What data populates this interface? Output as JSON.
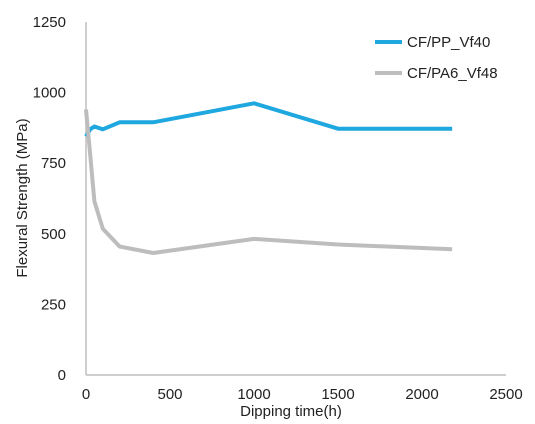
{
  "chart_data": {
    "type": "line",
    "title": "",
    "xlabel": "Dipping time(h)",
    "ylabel": "Flexural Strength  (MPa)",
    "xlim": [
      0,
      2500
    ],
    "ylim": [
      0,
      1250
    ],
    "xticks": [
      0,
      500,
      1000,
      1500,
      2000,
      2500
    ],
    "yticks": [
      0,
      250,
      500,
      750,
      1000,
      1250
    ],
    "grid": false,
    "legend_position": "top-right",
    "series": [
      {
        "name": "CF/PP_Vf40",
        "color": "#1fa7e0",
        "x": [
          0,
          25,
          50,
          100,
          200,
          400,
          1000,
          1500,
          2180
        ],
        "y": [
          845,
          870,
          880,
          870,
          895,
          895,
          962,
          872,
          872
        ]
      },
      {
        "name": "CF/PA6_Vf48",
        "color": "#bdbdbd",
        "x": [
          0,
          25,
          50,
          100,
          200,
          400,
          1000,
          1500,
          2180
        ],
        "y": [
          940,
          780,
          615,
          518,
          455,
          432,
          482,
          462,
          445
        ]
      }
    ]
  }
}
